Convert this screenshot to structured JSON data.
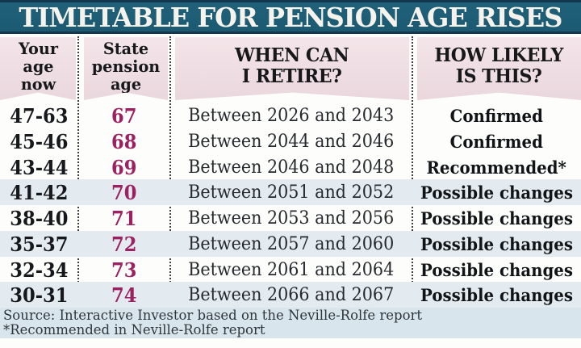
{
  "title": "TIMETABLE FOR PENSION AGE RISES",
  "colors": {
    "title_bg": "#1b5a71",
    "title_border": "#15374e",
    "title_text": "#f6f3ec",
    "header_banner_bg": "#eedbe1",
    "header_text": "#17181a",
    "pension_age_accent": "#9c2161",
    "stripe_row_bg": "#e4ebf0",
    "footer_bg": "#d9e5ed",
    "body_text": "#16181b",
    "separator_dots": "#3f3f3f"
  },
  "table": {
    "columns": [
      {
        "id": "age_now",
        "label": "Your\nage\nnow"
      },
      {
        "id": "pension_age",
        "label": "State\npension\nage"
      },
      {
        "id": "retire",
        "label": "WHEN CAN\nI RETIRE?"
      },
      {
        "id": "likely",
        "label": "HOW LIKELY\nIS THIS?"
      }
    ],
    "rows": [
      {
        "age_now": "47-63",
        "pension_age": "67",
        "retire": "Between 2026 and 2043",
        "likely": "Confirmed"
      },
      {
        "age_now": "45-46",
        "pension_age": "68",
        "retire": "Between 2044 and 2046",
        "likely": "Confirmed"
      },
      {
        "age_now": "43-44",
        "pension_age": "69",
        "retire": "Between 2046 and 2048",
        "likely": "Recommended*"
      },
      {
        "age_now": "41-42",
        "pension_age": "70",
        "retire": "Between 2051 and 2052",
        "likely": "Possible changes"
      },
      {
        "age_now": "38-40",
        "pension_age": "71",
        "retire": "Between 2053 and 2056",
        "likely": "Possible changes"
      },
      {
        "age_now": "35-37",
        "pension_age": "72",
        "retire": "Between 2057 and 2060",
        "likely": "Possible changes"
      },
      {
        "age_now": "32-34",
        "pension_age": "73",
        "retire": "Between 2061 and 2064",
        "likely": "Possible changes"
      },
      {
        "age_now": "30-31",
        "pension_age": "74",
        "retire": "Between 2066 and 2067",
        "likely": "Possible changes"
      }
    ]
  },
  "footer": {
    "source": "Source: Interactive Investor based on the Neville-Rolfe report",
    "note": "*Recommended in Neville-Rolfe report"
  },
  "chart_data": {
    "type": "table",
    "title": "TIMETABLE FOR PENSION AGE RISES",
    "columns": [
      "Your age now",
      "State pension age",
      "WHEN CAN I RETIRE?",
      "HOW LIKELY IS THIS?"
    ],
    "rows": [
      [
        "47-63",
        "67",
        "Between 2026 and 2043",
        "Confirmed"
      ],
      [
        "45-46",
        "68",
        "Between 2044 and 2046",
        "Confirmed"
      ],
      [
        "43-44",
        "69",
        "Between 2046 and 2048",
        "Recommended*"
      ],
      [
        "41-42",
        "70",
        "Between 2051 and 2052",
        "Possible changes"
      ],
      [
        "38-40",
        "71",
        "Between 2053 and 2056",
        "Possible changes"
      ],
      [
        "35-37",
        "72",
        "Between 2057 and 2060",
        "Possible changes"
      ],
      [
        "32-34",
        "73",
        "Between 2061 and 2064",
        "Possible changes"
      ],
      [
        "30-31",
        "74",
        "Between 2066 and 2067",
        "Possible changes"
      ]
    ],
    "source": "Source: Interactive Investor based on the Neville-Rolfe report",
    "footnote": "*Recommended in Neville-Rolfe report"
  }
}
